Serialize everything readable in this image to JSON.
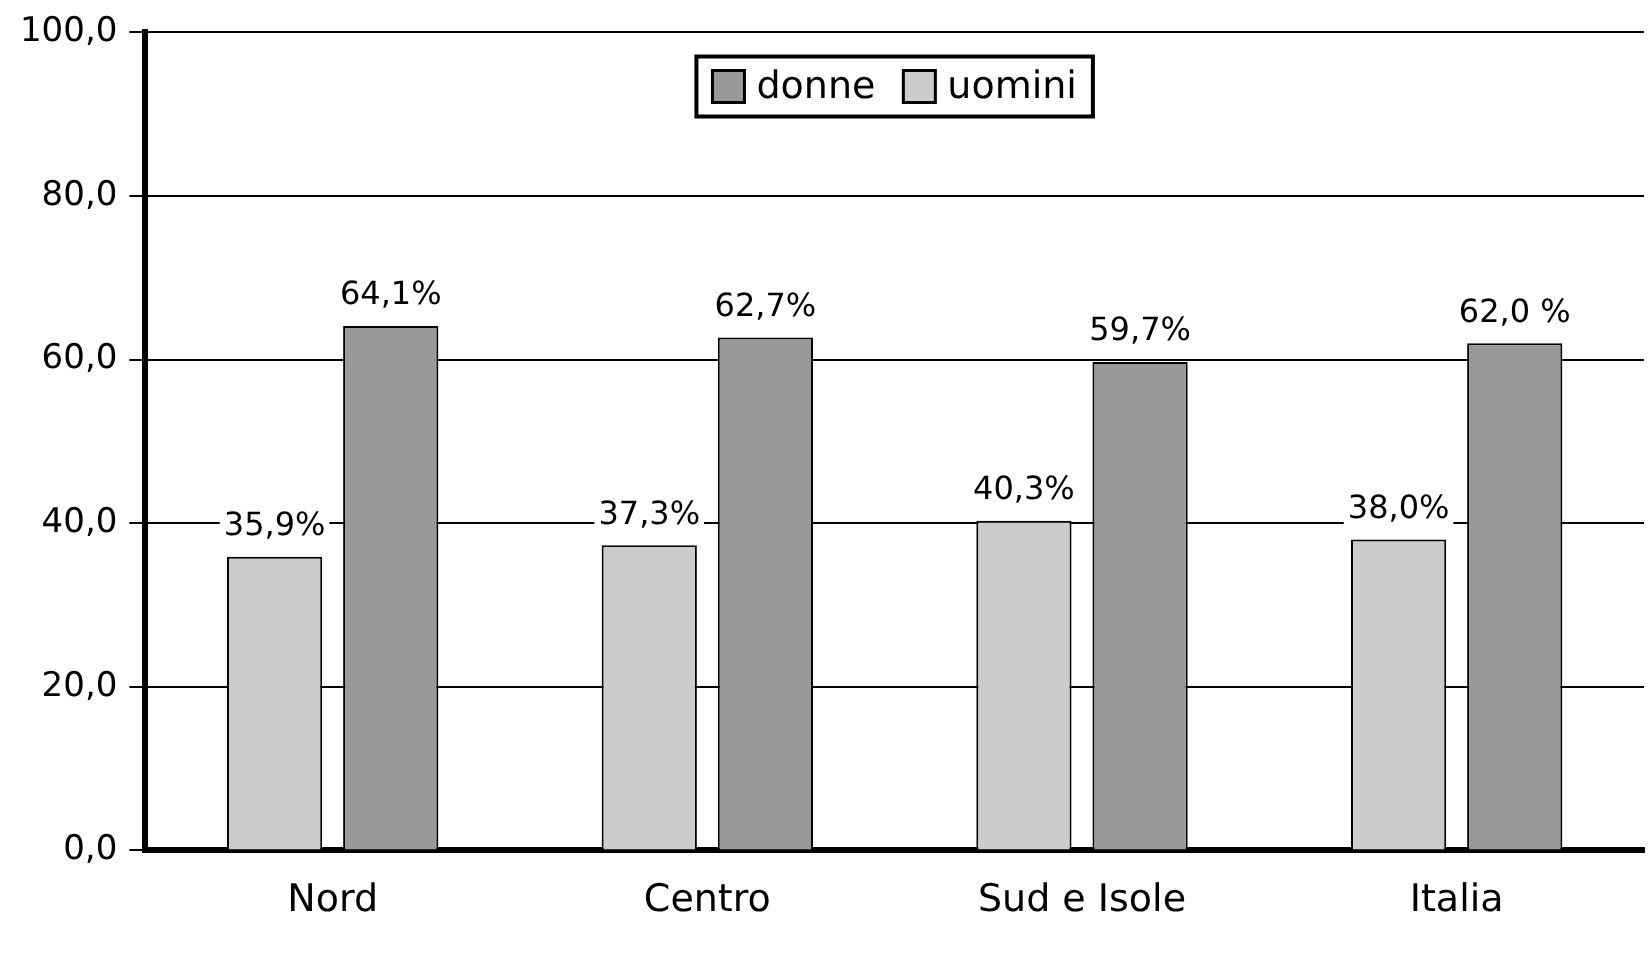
{
  "chart_data": {
    "type": "bar",
    "categories": [
      "Nord",
      "Centro",
      "Sud e Isole",
      "Italia"
    ],
    "series": [
      {
        "name": "uomini",
        "color": "#cccccc",
        "values": [
          35.9,
          37.3,
          40.3,
          38.0
        ],
        "value_labels": [
          "35,9%",
          "37,3%",
          "40,3%",
          "38,0%"
        ]
      },
      {
        "name": "donne",
        "color": "#999999",
        "values": [
          64.1,
          62.7,
          59.7,
          62.0
        ],
        "value_labels": [
          "64,1%",
          "62,7%",
          "59,7%",
          "62,0 %"
        ]
      }
    ],
    "ylim": [
      0,
      100
    ],
    "yticks": [
      {
        "value": 0,
        "label": "0,0"
      },
      {
        "value": 20,
        "label": "20,0"
      },
      {
        "value": 40,
        "label": "40,0"
      },
      {
        "value": 60,
        "label": "60,0"
      },
      {
        "value": 80,
        "label": "80,0"
      },
      {
        "value": 100,
        "label": "100,0"
      }
    ],
    "grid": "y",
    "legend": "top"
  }
}
